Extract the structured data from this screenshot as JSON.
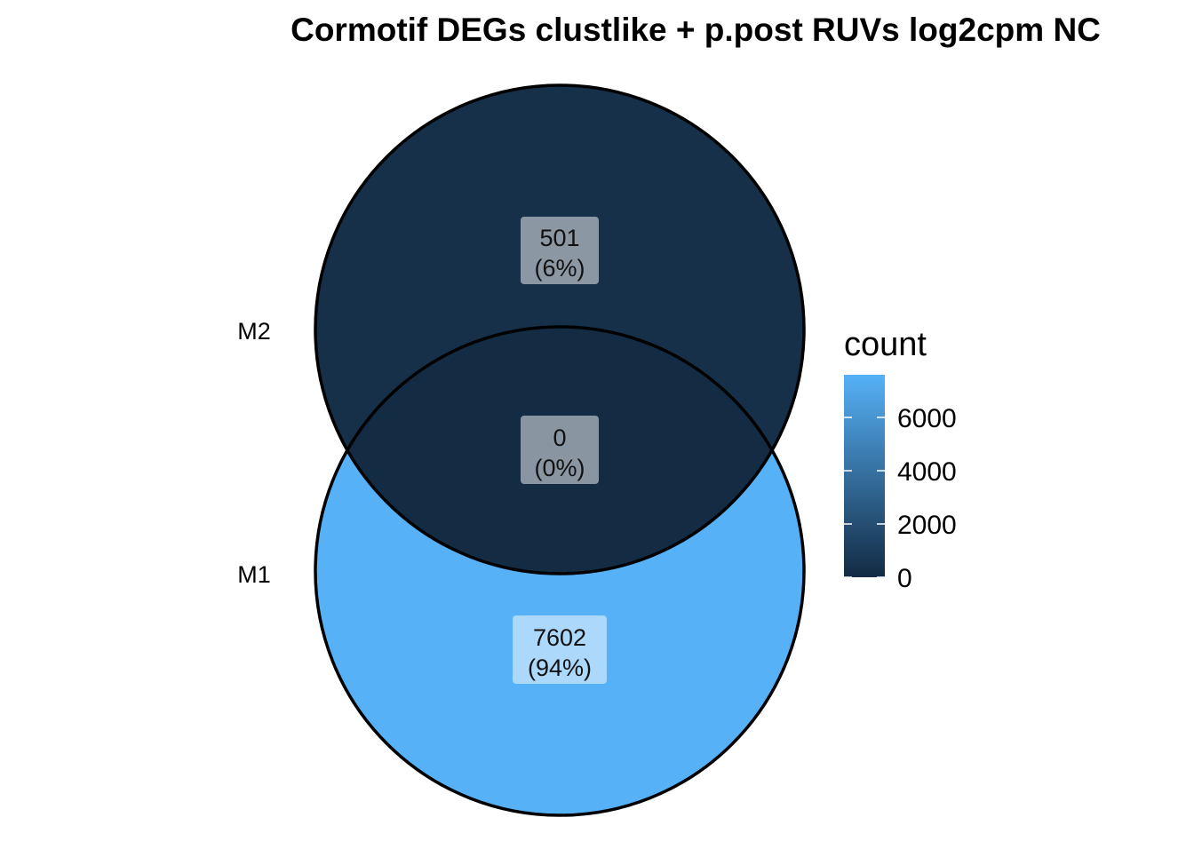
{
  "title": "Cormotif DEGs clustlike + p.post RUVs log2cpm NC",
  "sets": [
    {
      "name": "M2",
      "color": "#173049"
    },
    {
      "name": "M1",
      "color": "#56B1F7"
    }
  ],
  "regions": [
    {
      "id": "m2-only",
      "count": "501",
      "percent": "(6%)",
      "value": 501
    },
    {
      "id": "intersection",
      "count": "0",
      "percent": "(0%)",
      "value": 0
    },
    {
      "id": "m1-only",
      "count": "7602",
      "percent": "(94%)",
      "value": 7602
    }
  ],
  "legend": {
    "title": "count",
    "ticks": [
      "6000",
      "4000",
      "2000",
      "0"
    ],
    "tick_values": [
      6000,
      4000,
      2000,
      0
    ],
    "range": [
      0,
      7602
    ],
    "low_color": "#132B43",
    "high_color": "#56B1F7"
  }
}
